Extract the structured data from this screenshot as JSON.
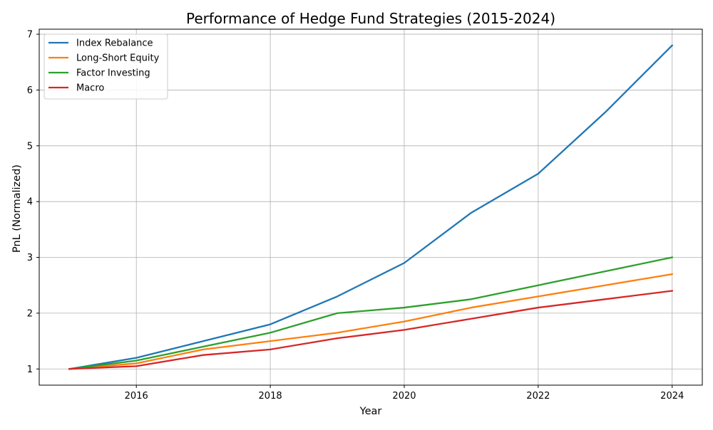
{
  "chart_data": {
    "type": "line",
    "title": "Performance of Hedge Fund Strategies (2015-2024)",
    "xlabel": "Year",
    "ylabel": "PnL (Normalized)",
    "x": [
      2015,
      2016,
      2017,
      2018,
      2019,
      2020,
      2021,
      2022,
      2023,
      2024
    ],
    "xlim": [
      2014.55,
      2024.45
    ],
    "ylim": [
      0.71,
      7.09
    ],
    "xticks": [
      2016,
      2018,
      2020,
      2022,
      2024
    ],
    "yticks": [
      1,
      2,
      3,
      4,
      5,
      6,
      7
    ],
    "grid": true,
    "legend_position": "top-left",
    "series": [
      {
        "name": "Index Rebalance",
        "color": "#1f77b4",
        "values": [
          1.0,
          1.2,
          1.5,
          1.8,
          2.3,
          2.9,
          3.8,
          4.5,
          5.6,
          6.8
        ]
      },
      {
        "name": "Long-Short Equity",
        "color": "#ff7f0e",
        "values": [
          1.0,
          1.1,
          1.35,
          1.5,
          1.65,
          1.85,
          2.1,
          2.3,
          2.5,
          2.7
        ]
      },
      {
        "name": "Factor Investing",
        "color": "#2ca02c",
        "values": [
          1.0,
          1.15,
          1.4,
          1.65,
          2.0,
          2.1,
          2.25,
          2.5,
          2.75,
          3.0
        ]
      },
      {
        "name": "Macro",
        "color": "#d62728",
        "values": [
          1.0,
          1.05,
          1.25,
          1.35,
          1.55,
          1.7,
          1.9,
          2.1,
          2.25,
          2.4
        ]
      }
    ]
  }
}
